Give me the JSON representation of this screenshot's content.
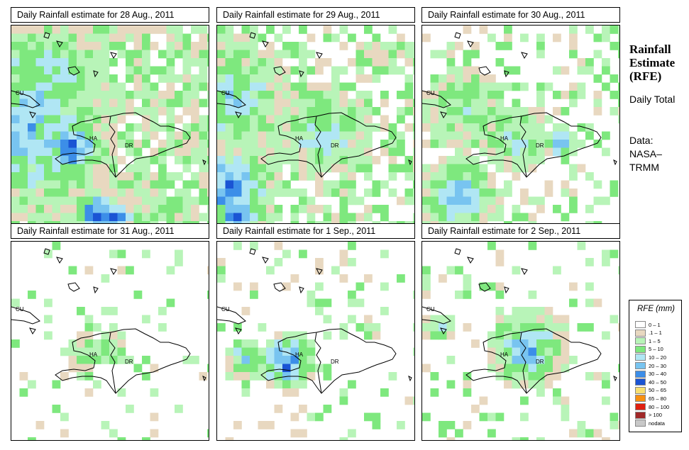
{
  "panels": [
    {
      "title": "Daily Rainfall estimate for  28 Aug., 2011"
    },
    {
      "title": "Daily Rainfall estimate for  29 Aug., 2011"
    },
    {
      "title": "Daily Rainfall estimate for  30 Aug., 2011"
    },
    {
      "title": "Daily Rainfall estimate for  31 Aug., 2011"
    },
    {
      "title": "Daily Rainfall estimate for  1 Sep., 2011"
    },
    {
      "title": "Daily Rainfall estimate for  2 Sep., 2011"
    }
  ],
  "map_labels": {
    "cuba": "CU",
    "haiti": "HA",
    "dominican_republic": "DR"
  },
  "sidebar": {
    "title": "Rainfall Estimate (RFE)",
    "period": "Daily Total",
    "source": "Data: NASA–TRMM"
  },
  "legend": {
    "title": "RFE (mm)",
    "items": [
      {
        "label": "0 – 1",
        "color": "#ffffff"
      },
      {
        "label": ".1 – 1",
        "color": "#e8d8c0"
      },
      {
        "label": "1 – 5",
        "color": "#b8f4b8"
      },
      {
        "label": "5 – 10",
        "color": "#7ee87e"
      },
      {
        "label": "10 – 20",
        "color": "#b0e6f4"
      },
      {
        "label": "20 – 30",
        "color": "#78c4f0"
      },
      {
        "label": "30 – 40",
        "color": "#3c8ee8"
      },
      {
        "label": "40 – 50",
        "color": "#1a54d4"
      },
      {
        "label": "50 – 65",
        "color": "#f8e070"
      },
      {
        "label": "65 – 80",
        "color": "#f89010"
      },
      {
        "label": "80 – 100",
        "color": "#e02010"
      },
      {
        "label": "> 100",
        "color": "#a02828"
      },
      {
        "label": "nodata",
        "color": "#c8c8c8"
      }
    ]
  }
}
